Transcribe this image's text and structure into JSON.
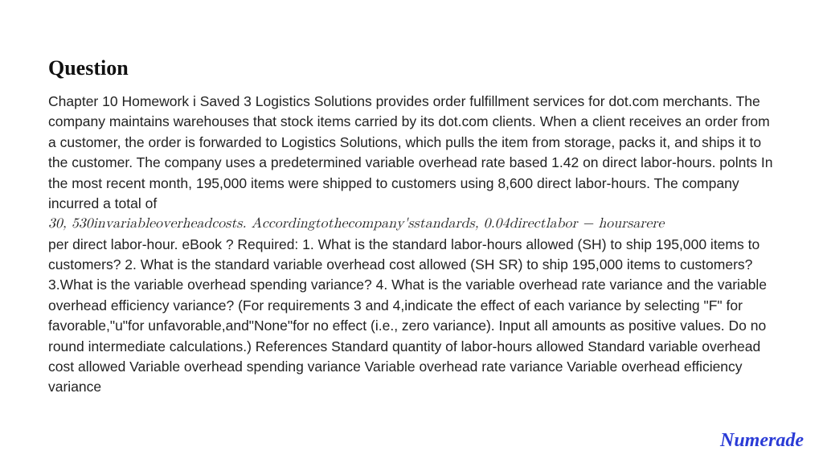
{
  "heading": "Question",
  "body": {
    "p1": "Chapter 10 Homework i Saved 3 Logistics Solutions provides order fulfillment services for dot.com merchants. The company maintains warehouses that stock items carried by its dot.com clients. When a client receives an order from a customer, the order is forwarded to Logistics Solutions, which pulls the item from storage, packs it, and ships it to the customer. The company uses a predetermined variable overhead rate based 1.42 on direct labor-hours. polnts In the most recent month, 195,000 items were shipped to customers using 8,600 direct labor-hours. The company incurred a total of",
    "math": "30, 530invariableoverheadcosts. Accordingtothecompany'sstandards, 0.04directlabor − hoursarere",
    "p2": "per direct labor-hour. eBook ? Required: 1. What is the standard labor-hours allowed (SH) to ship 195,000 items to customers? 2. What is the standard variable overhead cost allowed (SH SR) to ship 195,000 items to customers? 3.What is the variable overhead spending variance? 4. What is the variable overhead rate variance and the variable overhead efficiency variance? (For requirements 3 and 4,indicate the effect of each variance by selecting \"F\" for favorable,\"u\"for unfavorable,and\"None\"for no effect (i.e., zero variance). Input all amounts as positive values. Do no round intermediate calculations.) References Standard quantity of labor-hours allowed Standard variable overhead cost allowed Variable overhead spending variance Variable overhead rate variance Variable overhead efficiency variance"
  },
  "brand": "Numerade",
  "style": {
    "heading_fontsize": 26,
    "body_fontsize": 17.5,
    "body_lineheight": 1.45,
    "text_color": "#222222",
    "heading_color": "#111111",
    "background_color": "#ffffff",
    "brand_color": "#2a3bd6",
    "brand_fontsize": 24
  }
}
